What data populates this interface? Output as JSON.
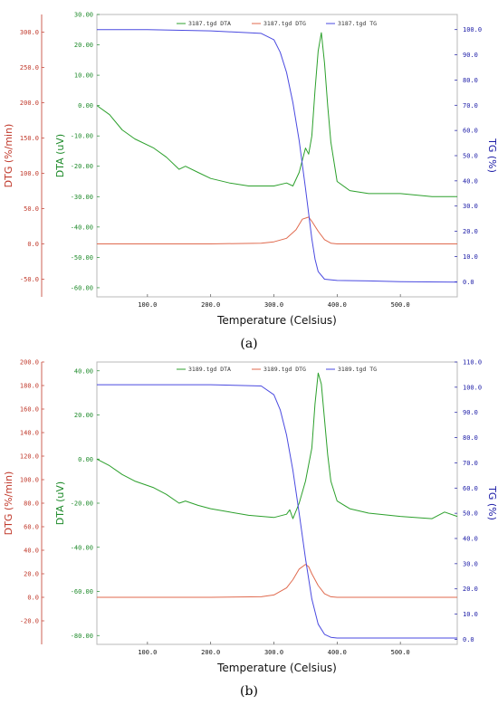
{
  "chart_data": [
    {
      "type": "line",
      "panel_label": "(a)",
      "xlabel": "Temperature (Celsius)",
      "ylabels": {
        "dtg": "DTG (%/min)",
        "dta": "DTA (uV)",
        "tg": "TG (%)"
      },
      "xlim": [
        20,
        590
      ],
      "x_ticks": [
        "100.0",
        "200.0",
        "300.0",
        "400.0",
        "500.0"
      ],
      "ylim": {
        "dtg": [
          -75,
          325
        ],
        "dta": [
          -63,
          30
        ],
        "tg": [
          -6,
          106
        ]
      },
      "dtg_ticks": [
        "300.0",
        "250.0",
        "200.0",
        "150.0",
        "100.0",
        "50.0",
        "0.0",
        "-50.0"
      ],
      "dta_ticks": [
        "30.00",
        "20.00",
        "10.00",
        "0.00",
        "-10.00",
        "-20.00",
        "-30.00",
        "-40.00",
        "-50.00",
        "-60.00"
      ],
      "tg_ticks": [
        "100.0",
        "90.0",
        "80.0",
        "70.0",
        "60.0",
        "50.0",
        "40.0",
        "30.0",
        "20.0",
        "10.0",
        "0.0"
      ],
      "legend": [
        "3187.tgd DTA",
        "3187.tgd DTG",
        "3187.tgd TG"
      ],
      "colors": {
        "dta": "#2ca02c",
        "dtg": "#e06a4e",
        "tg": "#4a4ae0"
      },
      "series": [
        {
          "name": "3187.tgd DTA",
          "axis": "dta",
          "x": [
            20,
            40,
            60,
            80,
            110,
            130,
            150,
            160,
            180,
            200,
            230,
            260,
            300,
            320,
            330,
            340,
            350,
            355,
            360,
            365,
            370,
            375,
            380,
            385,
            390,
            400,
            420,
            450,
            500,
            550,
            590
          ],
          "y": [
            0,
            -3,
            -8,
            -11,
            -14,
            -17,
            -21,
            -20,
            -22,
            -24,
            -25.5,
            -26.5,
            -26.5,
            -25.5,
            -26.5,
            -22,
            -14,
            -16,
            -10,
            5,
            18,
            24,
            14,
            0,
            -12,
            -25,
            -28,
            -29,
            -29,
            -30,
            -30
          ]
        },
        {
          "name": "3187.tgd DTG",
          "axis": "dtg",
          "x": [
            20,
            100,
            200,
            280,
            300,
            320,
            335,
            345,
            355,
            360,
            370,
            380,
            390,
            400,
            450,
            500,
            590
          ],
          "y": [
            0,
            0,
            0,
            1,
            3,
            8,
            20,
            35,
            38,
            32,
            18,
            6,
            1,
            0,
            0,
            0,
            0
          ]
        },
        {
          "name": "3187.tgd TG",
          "axis": "tg",
          "x": [
            20,
            100,
            200,
            280,
            300,
            310,
            320,
            330,
            340,
            350,
            360,
            365,
            370,
            380,
            400,
            450,
            500,
            590
          ],
          "y": [
            100,
            100,
            99.5,
            98.5,
            96,
            91,
            83,
            71,
            56,
            37,
            17,
            9,
            4,
            1,
            0.5,
            0.3,
            0,
            -0.2
          ]
        }
      ]
    },
    {
      "type": "line",
      "panel_label": "(b)",
      "xlabel": "Temperature (Celsius)",
      "ylabels": {
        "dtg": "DTG (%/min)",
        "dta": "DTA (uV)",
        "tg": "TG (%)"
      },
      "xlim": [
        20,
        590
      ],
      "x_ticks": [
        "100.0",
        "200.0",
        "300.0",
        "400.0",
        "500.0"
      ],
      "ylim": {
        "dtg": [
          -40,
          200
        ],
        "dta": [
          -84,
          44
        ],
        "tg": [
          -2,
          110
        ]
      },
      "dtg_ticks": [
        "200.0",
        "180.0",
        "160.0",
        "140.0",
        "120.0",
        "100.0",
        "80.0",
        "60.0",
        "40.0",
        "20.0",
        "0.0",
        "-20.0"
      ],
      "dta_ticks": [
        "40.00",
        "20.00",
        "0.00",
        "-20.00",
        "-40.00",
        "-60.00",
        "-80.00"
      ],
      "tg_ticks": [
        "110.0",
        "100.0",
        "90.0",
        "80.0",
        "70.0",
        "60.0",
        "50.0",
        "40.0",
        "30.0",
        "20.0",
        "10.0",
        "0.0"
      ],
      "legend": [
        "3189.tgd DTA",
        "3189.tgd DTG",
        "3189.tgd TG"
      ],
      "colors": {
        "dta": "#2ca02c",
        "dtg": "#e06a4e",
        "tg": "#4a4ae0"
      },
      "series": [
        {
          "name": "3189.tgd DTA",
          "axis": "dta",
          "x": [
            20,
            40,
            60,
            80,
            110,
            130,
            150,
            160,
            180,
            200,
            230,
            260,
            300,
            320,
            325,
            330,
            340,
            350,
            360,
            365,
            370,
            375,
            380,
            385,
            390,
            400,
            420,
            450,
            500,
            550,
            570,
            590
          ],
          "y": [
            0,
            -3,
            -7,
            -10,
            -13,
            -16,
            -20,
            -19,
            -21,
            -22.5,
            -24,
            -25.5,
            -26.5,
            -25,
            -23,
            -27,
            -20,
            -10,
            5,
            25,
            39,
            34,
            18,
            2,
            -10,
            -19,
            -22.5,
            -24.5,
            -26,
            -27,
            -24,
            -26
          ]
        },
        {
          "name": "3189.tgd DTG",
          "axis": "dtg",
          "x": [
            20,
            100,
            200,
            280,
            300,
            320,
            330,
            340,
            350,
            355,
            360,
            370,
            380,
            390,
            400,
            450,
            500,
            590
          ],
          "y": [
            0,
            0,
            0,
            0.5,
            2,
            8,
            15,
            24,
            28,
            26,
            20,
            10,
            3,
            0.5,
            0,
            0,
            0,
            0
          ]
        },
        {
          "name": "3189.tgd TG",
          "axis": "tg",
          "x": [
            20,
            100,
            200,
            280,
            300,
            310,
            320,
            330,
            340,
            350,
            360,
            370,
            380,
            390,
            400,
            450,
            500,
            590
          ],
          "y": [
            101,
            101,
            101,
            100.5,
            97,
            91,
            81,
            67,
            50,
            32,
            16,
            6,
            2,
            0.8,
            0.5,
            0.5,
            0.5,
            0.5
          ]
        }
      ]
    }
  ]
}
